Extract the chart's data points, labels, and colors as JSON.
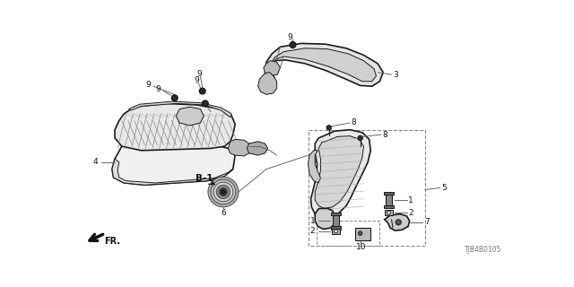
{
  "bg_color": "#ffffff",
  "diagram_id": "TJB4B0105",
  "line_color": "#1a1a1a",
  "gray_color": "#666666",
  "light_gray": "#999999",
  "dark_color": "#333333",
  "hatch_color": "#555555"
}
